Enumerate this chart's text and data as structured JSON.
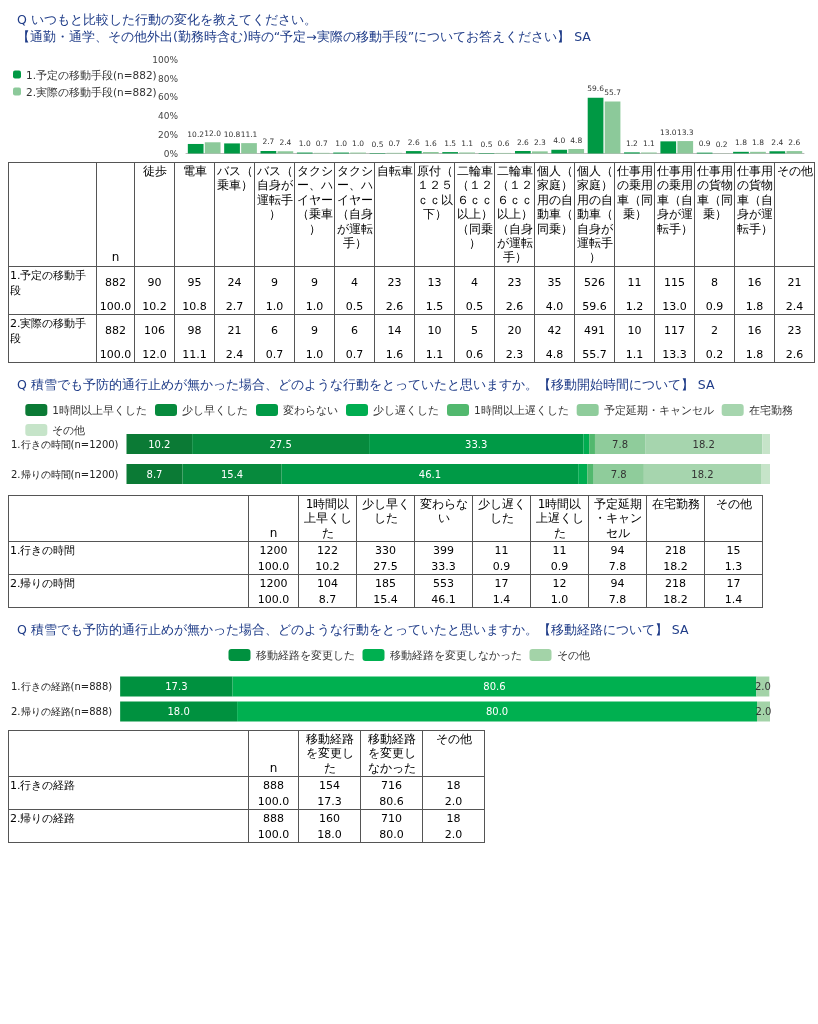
{
  "chart_data": [
    {
      "type": "bar",
      "title": "Q いつもと比較した行動の変化を教えてください。",
      "subtitle": "【通勤・通学、その他外出(勤務時含む)時の“予定→実際の移動手段”についてお答えください】 SA",
      "categories": [
        null,
        null,
        null,
        null,
        null,
        null,
        null,
        null,
        null,
        null,
        null,
        null,
        null,
        null,
        null,
        null,
        null
      ],
      "series": [
        {
          "name": "1.予定の移動手段(n=882)",
          "color": "#009944",
          "values": [
            10.2,
            10.8,
            2.7,
            1.0,
            1.0,
            0.5,
            2.6,
            1.5,
            0.5,
            2.6,
            4.0,
            59.6,
            1.2,
            13.0,
            0.9,
            1.8,
            2.4
          ],
          "value_labels": [
            "10.2",
            "10.8",
            "2.7",
            "1.0",
            "1.0",
            "0.5",
            "2.6",
            "1.5",
            "0.5",
            "2.6",
            "4.0",
            "59.6",
            "1.2",
            "13.0",
            "0.9",
            "1.8",
            "2.4"
          ]
        },
        {
          "name": "2.実際の移動手段(n=882)",
          "color": "#8cc99a",
          "values": [
            12.0,
            11.1,
            2.4,
            0.7,
            1.0,
            0.7,
            1.6,
            1.1,
            0.6,
            2.3,
            4.8,
            55.7,
            1.1,
            13.3,
            0.2,
            1.8,
            2.6
          ],
          "value_labels": [
            "12.0",
            "11.1",
            "2.4",
            "0.7",
            "1.0",
            "0.7",
            "1.6",
            "1.1",
            "0.6",
            "2.3",
            "4.8",
            "55.7",
            "1.1",
            "13.3",
            "0.2",
            "1.8",
            "2.6"
          ]
        }
      ],
      "ylim": [
        0,
        100
      ],
      "yticks": [
        {
          "value": 0,
          "label": "0%"
        },
        {
          "value": 20,
          "label": "20%"
        },
        {
          "value": 40,
          "label": "40%"
        },
        {
          "value": 60,
          "label": "60%"
        },
        {
          "value": 80,
          "label": "80%"
        },
        {
          "value": 100,
          "label": "100%"
        }
      ],
      "tick_labels": "y",
      "legend": "left"
    },
    {
      "type": "other",
      "categories": [
        "n",
        "徒歩",
        "電車",
        "バス（乗車）",
        "バス（自身が運転手）",
        "タクシー、ハイヤー（乗車）",
        "タクシー、ハイヤー（自身が運転手）",
        "自転車",
        "原付（１２５ｃｃ以下）",
        "二輪車（１２６ｃｃ以上）（同乗）",
        "二輪車（１２６ｃｃ以上）（自身が運転手）",
        "個人（家庭）用の自動車（同乗）",
        "個人（家庭）用の自動車（自身が運転手）",
        "仕事用の乗用車（同乗）",
        "仕事用の乗用車（自身が運転手）",
        "仕事用の貨物車（同乗）",
        "仕事用の貨物車（自身が運転手）",
        "その他"
      ],
      "series": [
        {
          "name": "1.予定の移動手段",
          "values": [
            882,
            90,
            95,
            24,
            9,
            9,
            4,
            23,
            13,
            4,
            23,
            35,
            526,
            11,
            115,
            8,
            16,
            21
          ],
          "value_labels": [
            "882",
            "90",
            "95",
            "24",
            "9",
            "9",
            "4",
            "23",
            "13",
            "4",
            "23",
            "35",
            "526",
            "11",
            "115",
            "8",
            "16",
            "21"
          ]
        },
        {
          "values": [
            100,
            10.2,
            10.8,
            2.7,
            1.0,
            1.0,
            0.5,
            2.6,
            1.5,
            0.5,
            2.6,
            4.0,
            59.6,
            1.2,
            13.0,
            0.9,
            1.8,
            2.4
          ],
          "value_labels": [
            "100.0",
            "10.2",
            "10.8",
            "2.7",
            "1.0",
            "1.0",
            "0.5",
            "2.6",
            "1.5",
            "0.5",
            "2.6",
            "4.0",
            "59.6",
            "1.2",
            "13.0",
            "0.9",
            "1.8",
            "2.4"
          ]
        },
        {
          "name": "2.実際の移動手段",
          "values": [
            882,
            106,
            98,
            21,
            6,
            9,
            6,
            14,
            10,
            5,
            20,
            42,
            491,
            10,
            117,
            2,
            16,
            23
          ],
          "value_labels": [
            "882",
            "106",
            "98",
            "21",
            "6",
            "9",
            "6",
            "14",
            "10",
            "5",
            "20",
            "42",
            "491",
            "10",
            "117",
            "2",
            "16",
            "23"
          ]
        },
        {
          "values": [
            100,
            12.0,
            11.1,
            2.4,
            0.7,
            1.0,
            0.7,
            1.6,
            1.1,
            0.6,
            2.3,
            4.8,
            55.7,
            1.1,
            13.3,
            0.2,
            1.8,
            2.6
          ],
          "value_labels": [
            "100.0",
            "12.0",
            "11.1",
            "2.4",
            "0.7",
            "1.0",
            "0.7",
            "1.6",
            "1.1",
            "0.6",
            "2.3",
            "4.8",
            "55.7",
            "1.1",
            "13.3",
            "0.2",
            "1.8",
            "2.6"
          ]
        }
      ]
    },
    {
      "type": "bar",
      "title": "Q 積雪でも予防的通行止めが無かった場合、どのような行動をとっていたと思いますか。【移動開始時間について】 SA",
      "orientation": "horizontal",
      "stacked": true,
      "categories": [
        "1.行きの時間(n=1200)",
        "2.帰りの時間(n=1200)"
      ],
      "series": [
        {
          "name": "1時間以上早くした",
          "color": "#0b7a35",
          "values": [
            10.2,
            8.7
          ],
          "value_labels": [
            "10.2",
            "8.7"
          ]
        },
        {
          "name": "少し早くした",
          "color": "#078a3d",
          "values": [
            27.5,
            15.4
          ],
          "value_labels": [
            "27.5",
            "15.4"
          ]
        },
        {
          "name": "変わらない",
          "color": "#009a46",
          "values": [
            33.3,
            46.1
          ],
          "value_labels": [
            "33.3",
            "46.1"
          ]
        },
        {
          "name": "少し遅くした",
          "color": "#00ad50",
          "values": [
            0.9,
            1.4
          ],
          "value_labels": [
            null,
            null
          ]
        },
        {
          "name": "1時間以上遅くした",
          "color": "#52b86e",
          "values": [
            0.9,
            1.0
          ],
          "value_labels": [
            null,
            null
          ]
        },
        {
          "name": "予定延期・キャンセル",
          "color": "#8fcc9b",
          "values": [
            7.8,
            7.8
          ],
          "value_labels": [
            "7.8",
            "7.8"
          ]
        },
        {
          "name": "在宅勤務",
          "color": "#a6d5ae",
          "values": [
            18.2,
            18.2
          ],
          "value_labels": [
            "18.2",
            "18.2"
          ]
        },
        {
          "name": "その他",
          "color": "#c6e4c9",
          "values": [
            1.3,
            1.4
          ],
          "value_labels": [
            null,
            null
          ]
        }
      ],
      "xlim": [
        0,
        100
      ],
      "tick_labels": "y",
      "legend": "top"
    },
    {
      "type": "other",
      "categories": [
        "n",
        "1時間以上早くした",
        "少し早くした",
        "変わらない",
        "少し遅くした",
        "1時間以上遅くした",
        "予定延期・キャンセル",
        "在宅勤務",
        "その他"
      ],
      "series": [
        {
          "name": "1.行きの時間",
          "values": [
            1200,
            122,
            330,
            399,
            11,
            11,
            94,
            218,
            15
          ],
          "value_labels": [
            "1200",
            "122",
            "330",
            "399",
            "11",
            "11",
            "94",
            "218",
            "15"
          ]
        },
        {
          "values": [
            100,
            10.2,
            27.5,
            33.3,
            0.9,
            0.9,
            7.8,
            18.2,
            1.3
          ],
          "value_labels": [
            "100.0",
            "10.2",
            "27.5",
            "33.3",
            "0.9",
            "0.9",
            "7.8",
            "18.2",
            "1.3"
          ]
        },
        {
          "name": "2.帰りの時間",
          "values": [
            1200,
            104,
            185,
            553,
            17,
            12,
            94,
            218,
            17
          ],
          "value_labels": [
            "1200",
            "104",
            "185",
            "553",
            "17",
            "12",
            "94",
            "218",
            "17"
          ]
        },
        {
          "values": [
            100,
            8.7,
            15.4,
            46.1,
            1.4,
            1.0,
            7.8,
            18.2,
            1.4
          ],
          "value_labels": [
            "100.0",
            "8.7",
            "15.4",
            "46.1",
            "1.4",
            "1.0",
            "7.8",
            "18.2",
            "1.4"
          ]
        }
      ]
    },
    {
      "type": "bar",
      "title": "Q 積雪でも予防的通行止めが無かった場合、どのような行動をとっていたと思いますか。【移動経路について】 SA",
      "orientation": "horizontal",
      "stacked": true,
      "categories": [
        "1.行きの経路(n=888)",
        "2.帰りの経路(n=888)"
      ],
      "series": [
        {
          "name": "移動経路を変更した",
          "color": "#00913f",
          "values": [
            17.3,
            18.0
          ],
          "value_labels": [
            "17.3",
            "18.0"
          ]
        },
        {
          "name": "移動経路を変更しなかった",
          "color": "#00b050",
          "values": [
            80.6,
            80.0
          ],
          "value_labels": [
            "80.6",
            "80.0"
          ]
        },
        {
          "name": "その他",
          "color": "#a3d3a8",
          "values": [
            2.0,
            2.0
          ],
          "value_labels": [
            "2.0",
            "2.0"
          ]
        }
      ],
      "xlim": [
        0,
        100
      ],
      "tick_labels": "y",
      "legend": "top"
    },
    {
      "type": "other",
      "categories": [
        "n",
        "移動経路を変更した",
        "移動経路を変更しなかった",
        "その他"
      ],
      "series": [
        {
          "name": "1.行きの経路",
          "values": [
            888,
            154,
            716,
            18
          ],
          "value_labels": [
            "888",
            "154",
            "716",
            "18"
          ]
        },
        {
          "values": [
            100,
            17.3,
            80.6,
            2.0
          ],
          "value_labels": [
            "100.0",
            "17.3",
            "80.6",
            "2.0"
          ]
        },
        {
          "name": "2.帰りの経路",
          "values": [
            888,
            160,
            710,
            18
          ],
          "value_labels": [
            "888",
            "160",
            "710",
            "18"
          ]
        },
        {
          "values": [
            100,
            18.0,
            80.0,
            2.0
          ],
          "value_labels": [
            "100.0",
            "18.0",
            "80.0",
            "2.0"
          ]
        }
      ]
    }
  ]
}
